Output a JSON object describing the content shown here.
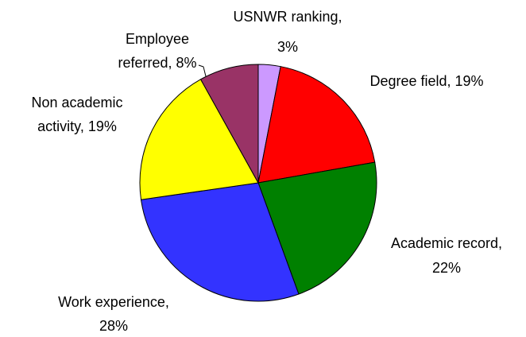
{
  "chart_data": {
    "type": "pie",
    "values": [
      3,
      19,
      22,
      28,
      19,
      8
    ],
    "value_labels": [
      [
        "USNWR ranking,",
        "3%"
      ],
      [
        "Degree field, 19%"
      ],
      [
        "Academic record,",
        "22%"
      ],
      [
        "Work experience,",
        "28%"
      ],
      [
        "Non academic",
        "activity, 19%"
      ],
      [
        "Employee",
        "referred, 8%"
      ]
    ],
    "colors": [
      "#cc99ff",
      "#ff0000",
      "#008000",
      "#3333ff",
      "#ffff00",
      "#993366"
    ]
  }
}
